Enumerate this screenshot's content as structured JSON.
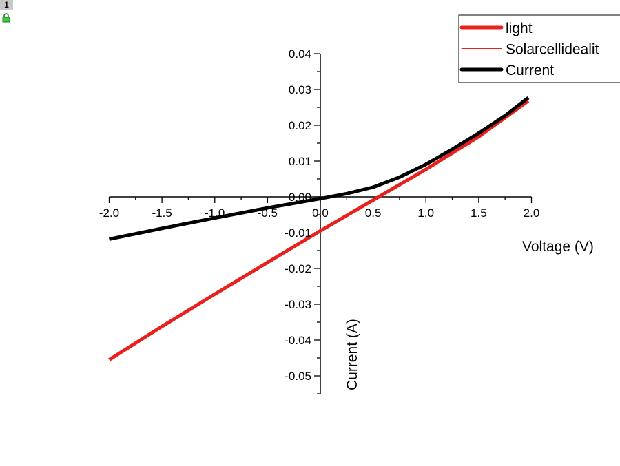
{
  "window": {
    "layer_number": "1",
    "lock_icon": "green-padlock-icon"
  },
  "chart_data": {
    "type": "line",
    "xlabel": "Voltage (V)",
    "ylabel": "Current (A)",
    "xlim": [
      -2.0,
      2.0
    ],
    "ylim": [
      -0.055,
      0.04
    ],
    "xticks": [
      -2.0,
      -1.5,
      -1.0,
      -0.5,
      0.0,
      0.5,
      1.0,
      1.5,
      2.0
    ],
    "xtick_labels": [
      "-2.0",
      "-1.5",
      "-1.0",
      "-0.5",
      "0.0",
      "0.5",
      "1.0",
      "1.5",
      "2.0"
    ],
    "yticks": [
      0.04,
      0.03,
      0.02,
      0.01,
      0.0,
      -0.01,
      -0.02,
      -0.03,
      -0.04,
      -0.05
    ],
    "ytick_labels": [
      "0.04",
      "0.03",
      "0.02",
      "0.01",
      "0.00",
      "-0.01",
      "-0.02",
      "-0.03",
      "-0.04",
      "-0.05"
    ],
    "axes_cross_at_origin": true,
    "grid": false,
    "legend_position": "top-right",
    "series": [
      {
        "name": "light",
        "color": "#e8211d",
        "style": "thick",
        "x": [
          -2.0,
          -1.5,
          -1.0,
          -0.5,
          0.0,
          0.5,
          1.0,
          1.5,
          1.97
        ],
        "y": [
          -0.0455,
          -0.0362,
          -0.0272,
          -0.0183,
          -0.0095,
          -0.0009,
          0.0077,
          0.0168,
          0.0268
        ]
      },
      {
        "name": "Solarcellidealit",
        "color": "#e8211d",
        "style": "thin",
        "x": [
          -2.0,
          -1.5,
          -1.0,
          -0.5,
          0.0,
          0.5,
          1.0,
          1.5,
          1.97
        ],
        "y": [
          -0.0452,
          -0.0359,
          -0.0269,
          -0.018,
          -0.0092,
          -0.0006,
          0.008,
          0.0172,
          0.0273
        ]
      },
      {
        "name": "Current",
        "color": "#000000",
        "style": "thick",
        "x": [
          -2.0,
          -1.5,
          -1.0,
          -0.5,
          0.0,
          0.25,
          0.5,
          0.75,
          1.0,
          1.25,
          1.5,
          1.75,
          1.97
        ],
        "y": [
          -0.0118,
          -0.0088,
          -0.0059,
          -0.0031,
          -0.0005,
          0.0009,
          0.0027,
          0.0055,
          0.0091,
          0.0133,
          0.0178,
          0.0227,
          0.0277
        ]
      }
    ]
  }
}
